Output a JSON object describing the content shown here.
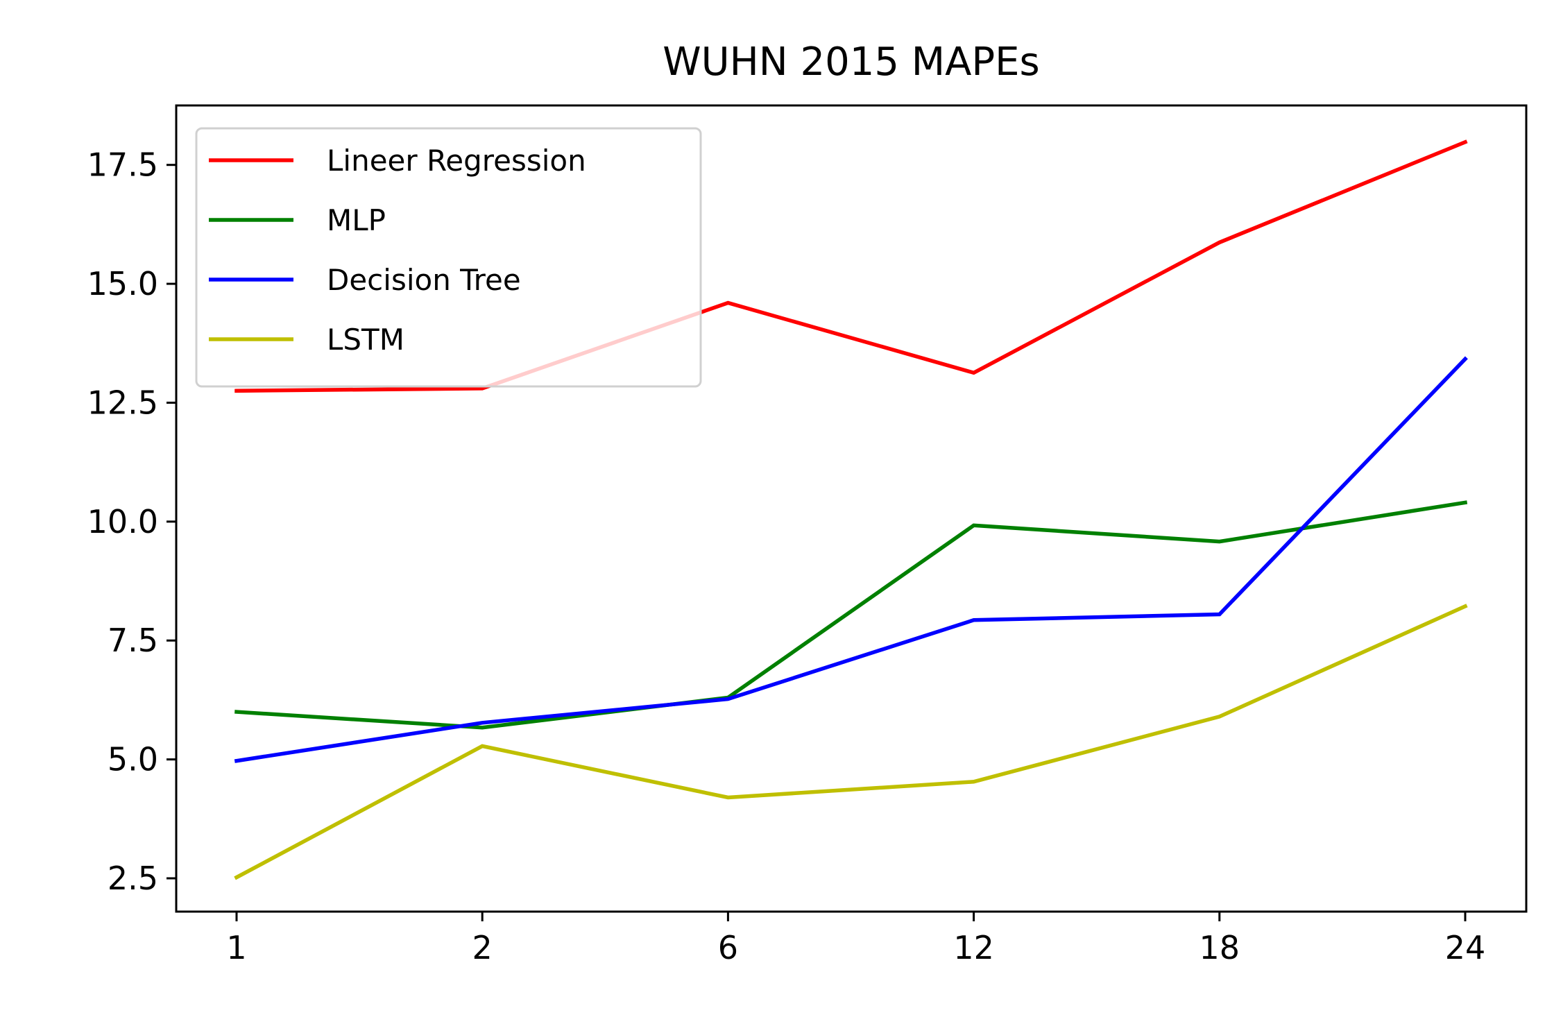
{
  "chart_data": {
    "type": "line",
    "title": "WUHN  2015 MAPEs",
    "xlabel": "",
    "ylabel": "",
    "categories": [
      "1",
      "2",
      "6",
      "12",
      "18",
      "24"
    ],
    "y_ticks": [
      "2.5",
      "5.0",
      "7.5",
      "10.0",
      "12.5",
      "15.0",
      "17.5"
    ],
    "ylim": [
      1.8,
      18.75
    ],
    "grid": false,
    "legend_position": "upper-left",
    "series": [
      {
        "name": "Lineer Regression",
        "color": "#ff0000",
        "values": [
          12.75,
          12.8,
          14.6,
          13.13,
          15.87,
          17.98
        ]
      },
      {
        "name": "MLP",
        "color": "#008000",
        "values": [
          6.0,
          5.67,
          6.3,
          9.92,
          9.58,
          10.4
        ]
      },
      {
        "name": "Decision Tree",
        "color": "#0000ff",
        "values": [
          4.97,
          5.77,
          6.27,
          7.93,
          8.05,
          13.42
        ]
      },
      {
        "name": "LSTM",
        "color": "#bfbf00",
        "values": [
          2.52,
          5.28,
          4.2,
          4.53,
          5.9,
          8.22
        ]
      }
    ]
  }
}
